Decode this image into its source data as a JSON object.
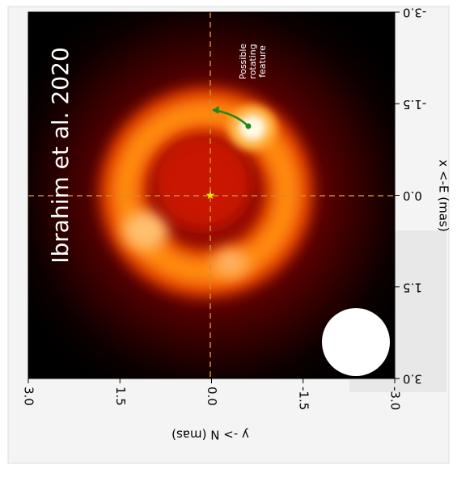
{
  "chart_data": {
    "type": "image",
    "title": "Ibrahim et al. 2020",
    "xlabel": "y -> N (mas)",
    "ylabel": "x <-E (mas)",
    "annotation": [
      "Possible",
      "rotating",
      "feature"
    ],
    "xlim": [
      3,
      -3
    ],
    "xticks": [
      {
        "value": 3,
        "label": "3.0"
      },
      {
        "value": 1.5,
        "label": "1.5"
      },
      {
        "value": 0,
        "label": "0.0"
      },
      {
        "value": -1.5,
        "label": "-1.5"
      },
      {
        "value": -3,
        "label": "-3.0"
      }
    ],
    "ylim": [
      3,
      -3
    ],
    "yticks": [
      {
        "value": -3,
        "label": "-3.0"
      },
      {
        "value": -1.5,
        "label": "-1.5"
      },
      {
        "value": 0,
        "label": "0.0"
      },
      {
        "value": 1.5,
        "label": "1.5"
      },
      {
        "value": 3,
        "label": "3.0"
      }
    ]
  }
}
